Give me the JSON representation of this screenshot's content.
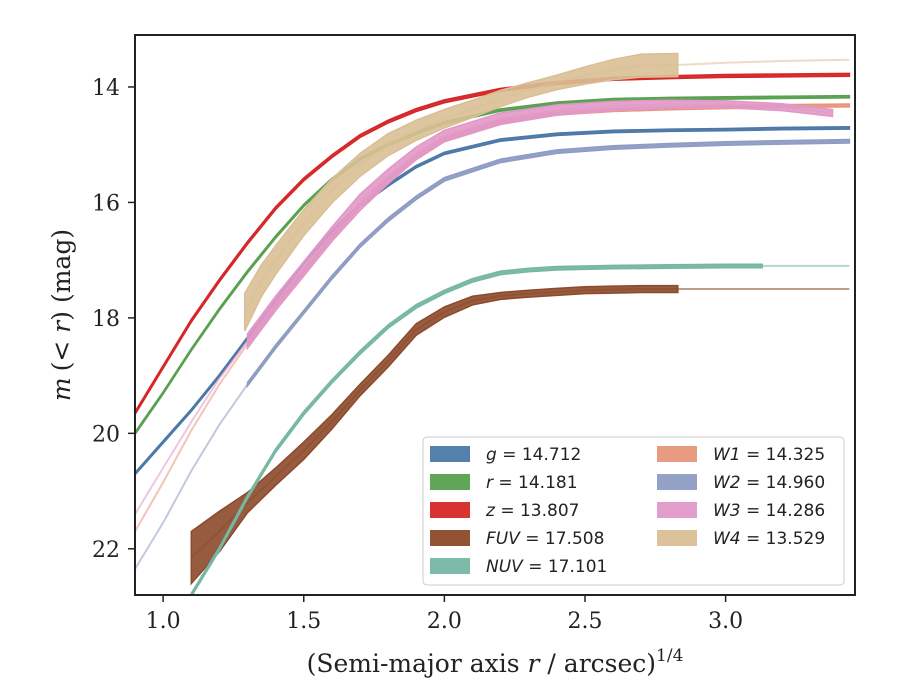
{
  "chart_data": {
    "type": "line",
    "xlabel_main": "(Semi-major axis ",
    "xlabel_var": "r",
    "xlabel_rest": " / arcsec)",
    "xlabel_sup": "1/4",
    "ylabel_var1": "m",
    "ylabel_mid": "(< ",
    "ylabel_var2": "r",
    "ylabel_rest": ") (mag)",
    "xlim": [
      0.9,
      3.46
    ],
    "ylim": [
      22.8,
      13.1
    ],
    "y_inverted": true,
    "x_ticks": [
      1.0,
      1.5,
      2.0,
      2.5,
      3.0
    ],
    "x_tick_labels": [
      "1.0",
      "1.5",
      "2.0",
      "2.5",
      "3.0"
    ],
    "y_ticks": [
      14,
      16,
      18,
      20,
      22
    ],
    "y_tick_labels": [
      "14",
      "16",
      "18",
      "20",
      "22"
    ],
    "grid": false,
    "legend_location": "lower-right",
    "legend_columns": 2,
    "series": [
      {
        "band": "g",
        "total": "14.712",
        "color": "#4c78a8",
        "x": [
          0.9,
          1.0,
          1.1,
          1.2,
          1.3,
          1.4,
          1.5,
          1.6,
          1.7,
          1.8,
          1.9,
          2.0,
          2.2,
          2.4,
          2.6,
          2.8,
          3.0,
          3.2,
          3.44
        ],
        "y": [
          20.7,
          20.15,
          19.6,
          19.0,
          18.35,
          17.7,
          17.05,
          16.5,
          16.05,
          15.7,
          15.38,
          15.15,
          14.92,
          14.82,
          14.77,
          14.75,
          14.74,
          14.72,
          14.71
        ],
        "band_width": 0.04,
        "solid_until": 3.44
      },
      {
        "band": "r",
        "total": "14.181",
        "color": "#59a14f",
        "x": [
          0.9,
          1.0,
          1.1,
          1.2,
          1.3,
          1.4,
          1.5,
          1.6,
          1.7,
          1.8,
          1.9,
          2.0,
          2.2,
          2.4,
          2.6,
          2.8,
          3.0,
          3.2,
          3.44
        ],
        "y": [
          20.0,
          19.3,
          18.55,
          17.85,
          17.2,
          16.6,
          16.05,
          15.6,
          15.25,
          15.0,
          14.8,
          14.62,
          14.4,
          14.28,
          14.22,
          14.2,
          14.19,
          14.18,
          14.17
        ],
        "band_width": 0.04,
        "solid_until": 3.44
      },
      {
        "band": "z",
        "total": "13.807",
        "color": "#d62728",
        "x": [
          0.9,
          1.0,
          1.1,
          1.2,
          1.3,
          1.4,
          1.5,
          1.6,
          1.7,
          1.8,
          1.9,
          2.0,
          2.2,
          2.4,
          2.6,
          2.8,
          3.0,
          3.2,
          3.44
        ],
        "y": [
          19.65,
          18.85,
          18.05,
          17.35,
          16.7,
          16.1,
          15.6,
          15.2,
          14.85,
          14.6,
          14.4,
          14.25,
          14.05,
          13.93,
          13.86,
          13.83,
          13.81,
          13.8,
          13.79
        ],
        "band_width": 0.05,
        "solid_until": 3.44
      },
      {
        "band": "FUV",
        "total": "17.508",
        "color": "#8c4a2a",
        "x": [
          1.1,
          1.2,
          1.3,
          1.4,
          1.5,
          1.6,
          1.7,
          1.8,
          1.9,
          2.0,
          2.1,
          2.2,
          2.3,
          2.4,
          2.5,
          2.6,
          2.7,
          2.83,
          3.0,
          3.2,
          3.44
        ],
        "y": [
          22.15,
          21.7,
          21.2,
          20.75,
          20.3,
          19.8,
          19.25,
          18.75,
          18.2,
          17.9,
          17.7,
          17.62,
          17.58,
          17.55,
          17.52,
          17.51,
          17.5,
          17.5,
          17.5,
          17.5,
          17.5
        ],
        "band_widths": [
          0.9,
          0.7,
          0.35,
          0.3,
          0.3,
          0.25,
          0.2,
          0.2,
          0.2,
          0.18,
          0.15,
          0.12,
          0.12,
          0.12,
          0.12,
          0.12,
          0.12,
          0.12
        ],
        "solid_until": 2.83
      },
      {
        "band": "NUV",
        "total": "17.101",
        "color": "#76b7a3",
        "x": [
          1.1,
          1.2,
          1.3,
          1.4,
          1.5,
          1.6,
          1.7,
          1.8,
          1.9,
          2.0,
          2.1,
          2.2,
          2.3,
          2.4,
          2.6,
          2.8,
          3.0,
          3.13,
          3.44
        ],
        "y": [
          22.8,
          22.0,
          21.1,
          20.3,
          19.65,
          19.1,
          18.6,
          18.15,
          17.8,
          17.55,
          17.35,
          17.22,
          17.17,
          17.14,
          17.12,
          17.11,
          17.1,
          17.1,
          17.1
        ],
        "band_width": 0.06,
        "solid_until": 3.13
      },
      {
        "band": "W1",
        "total": "14.325",
        "color": "#e8967a",
        "x": [
          0.9,
          1.0,
          1.1,
          1.2,
          1.3,
          1.4,
          1.5,
          1.6,
          1.7,
          1.8,
          1.9,
          2.0,
          2.2,
          2.4,
          2.6,
          2.8,
          3.0,
          3.2,
          3.44
        ],
        "y": [
          21.7,
          20.85,
          19.95,
          19.15,
          18.45,
          17.8,
          17.2,
          16.6,
          16.05,
          15.6,
          15.2,
          14.9,
          14.6,
          14.46,
          14.4,
          14.37,
          14.35,
          14.33,
          14.32
        ],
        "band_width": 0.05,
        "solid_until": 3.44,
        "solid_from": 1.29
      },
      {
        "band": "W2",
        "total": "14.960",
        "color": "#8e9cc4",
        "x": [
          0.9,
          1.0,
          1.1,
          1.2,
          1.3,
          1.4,
          1.5,
          1.6,
          1.7,
          1.8,
          1.9,
          2.0,
          2.2,
          2.4,
          2.6,
          2.8,
          3.0,
          3.2,
          3.44
        ],
        "y": [
          22.35,
          21.55,
          20.65,
          19.85,
          19.15,
          18.5,
          17.9,
          17.3,
          16.75,
          16.3,
          15.92,
          15.6,
          15.28,
          15.12,
          15.05,
          15.01,
          14.98,
          14.96,
          14.94
        ],
        "band_width": 0.06,
        "solid_until": 3.44,
        "solid_from": 1.29
      },
      {
        "band": "W3",
        "total": "14.286",
        "color": "#e198c8",
        "x": [
          0.9,
          1.0,
          1.1,
          1.2,
          1.3,
          1.4,
          1.5,
          1.6,
          1.7,
          1.8,
          1.9,
          2.0,
          2.2,
          2.4,
          2.6,
          2.8,
          3.0,
          3.2,
          3.38
        ],
        "y": [
          21.4,
          20.6,
          19.8,
          19.05,
          18.4,
          17.75,
          17.15,
          16.55,
          16.0,
          15.55,
          15.15,
          14.85,
          14.55,
          14.4,
          14.33,
          14.3,
          14.3,
          14.35,
          14.45
        ],
        "band_widths": [
          0.25,
          0.25,
          0.25,
          0.25,
          0.28,
          0.25,
          0.22,
          0.2,
          0.2,
          0.18,
          0.16,
          0.14,
          0.12,
          0.12,
          0.12,
          0.12,
          0.14,
          0.25,
          0.35
        ],
        "solid_until": 3.38,
        "solid_from": 1.29
      },
      {
        "band": "W4",
        "total": "13.529",
        "color": "#d9bf95",
        "x": [
          1.29,
          1.35,
          1.4,
          1.5,
          1.6,
          1.7,
          1.8,
          1.9,
          2.0,
          2.1,
          2.2,
          2.3,
          2.4,
          2.5,
          2.6,
          2.7,
          2.83,
          3.0,
          3.2,
          3.44
        ],
        "y": [
          17.9,
          17.35,
          17.0,
          16.35,
          15.8,
          15.35,
          15.0,
          14.75,
          14.55,
          14.38,
          14.2,
          14.05,
          13.92,
          13.8,
          13.7,
          13.63,
          13.62,
          13.58,
          13.55,
          13.53
        ],
        "band_widths": [
          0.65,
          0.55,
          0.5,
          0.45,
          0.42,
          0.4,
          0.38,
          0.35,
          0.32,
          0.3,
          0.28,
          0.25,
          0.25,
          0.3,
          0.35,
          0.4,
          0.4
        ],
        "solid_until": 2.83,
        "solid_from": 1.29
      }
    ],
    "legend": [
      {
        "var": "g",
        "value": "14.712",
        "color": "#4c78a8"
      },
      {
        "var": "r",
        "value": "14.181",
        "color": "#59a14f"
      },
      {
        "var": "z",
        "value": "13.807",
        "color": "#d62728"
      },
      {
        "var": "FUV",
        "value": "17.508",
        "color": "#8c4a2a"
      },
      {
        "var": "NUV",
        "value": "17.101",
        "color": "#76b7a3"
      },
      {
        "var": "W1",
        "value": "14.325",
        "color": "#e8967a"
      },
      {
        "var": "W2",
        "value": "14.960",
        "color": "#8e9cc4"
      },
      {
        "var": "W3",
        "value": "14.286",
        "color": "#e198c8"
      },
      {
        "var": "W4",
        "value": "13.529",
        "color": "#d9bf95"
      }
    ]
  }
}
